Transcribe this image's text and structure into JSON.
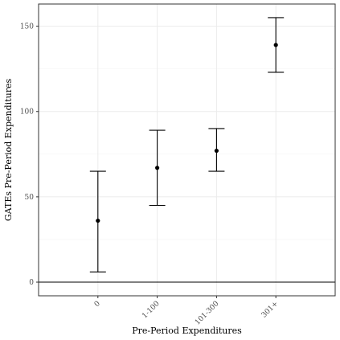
{
  "chart_data": {
    "type": "scatter",
    "subtype": "point-with-error-bars",
    "title": "",
    "xlabel": "Pre-Period Expenditures",
    "ylabel": "GATEs Pre-Period Expenditures",
    "categories": [
      "0",
      "1-100",
      "101-300",
      "301+"
    ],
    "series": [
      {
        "values": [
          36,
          67,
          77,
          139
        ],
        "lower": [
          6,
          45,
          65,
          123
        ],
        "upper": [
          65,
          89,
          90,
          155
        ]
      }
    ],
    "yticks": [
      0,
      50,
      100,
      150
    ],
    "ylim": [
      -8,
      163
    ],
    "reference_line": 0,
    "grid": true,
    "legend": "none",
    "colors": {
      "points": "#000000",
      "grid_major": "#ebebeb",
      "grid_minor": "#f5f5f5",
      "panel_border": "#333333"
    }
  }
}
